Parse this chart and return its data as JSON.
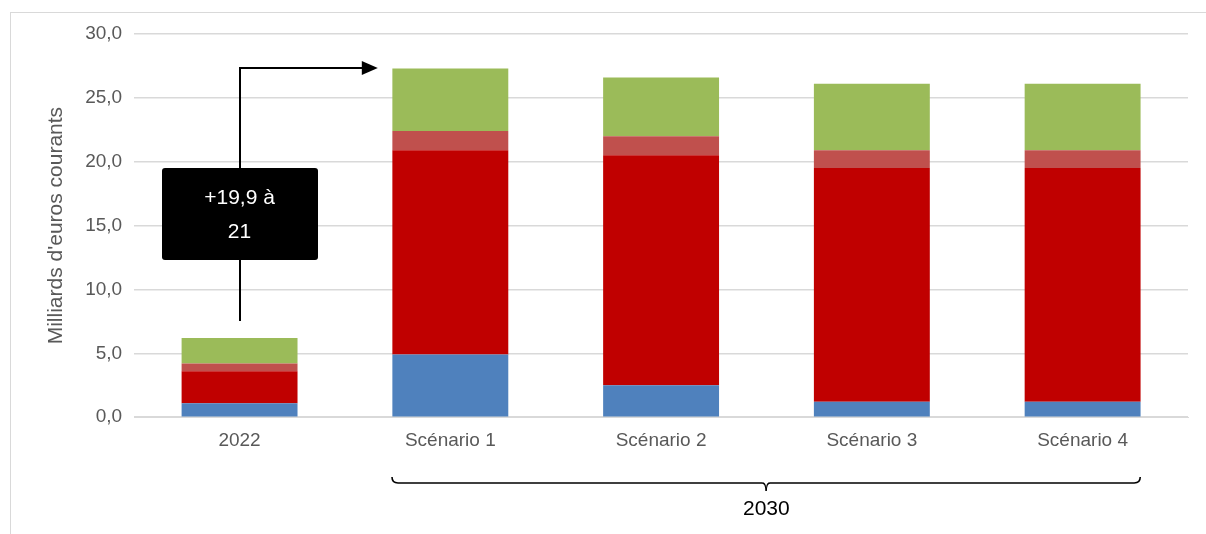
{
  "chart_data": {
    "type": "bar",
    "stacked": true,
    "ylabel": "Milliards d'euros courants",
    "categories": [
      "2022",
      "Scénario 1",
      "Scénario 2",
      "Scénario 3",
      "Scénario 4"
    ],
    "series": [
      {
        "color": "#4f81bd",
        "values": [
          1.1,
          4.9,
          2.5,
          1.2,
          1.2
        ]
      },
      {
        "color": "#c00000",
        "values": [
          2.5,
          16.0,
          18.0,
          18.3,
          18.3
        ]
      },
      {
        "color": "#c0504d",
        "values": [
          0.6,
          1.5,
          1.5,
          1.4,
          1.4
        ]
      },
      {
        "color": "#9bbb59",
        "values": [
          2.0,
          4.9,
          4.6,
          5.2,
          5.2
        ]
      }
    ],
    "ylim": [
      0,
      30
    ],
    "yticks": [
      {
        "value": 0,
        "label": "0,0"
      },
      {
        "value": 5,
        "label": "5,0"
      },
      {
        "value": 10,
        "label": "10,0"
      },
      {
        "value": 15,
        "label": "15,0"
      },
      {
        "value": 20,
        "label": "20,0"
      },
      {
        "value": 25,
        "label": "25,0"
      },
      {
        "value": 30,
        "label": "30,0"
      }
    ],
    "grid": "y",
    "legend": false,
    "annotations": [
      "+19,9 à 21",
      "2030"
    ]
  }
}
